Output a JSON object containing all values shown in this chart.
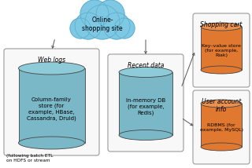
{
  "bg_color": "#ffffff",
  "cloud_color": "#7ec8e3",
  "cloud_edge": "#5aabcc",
  "box_bg": "#f8f8f8",
  "box_edge": "#999999",
  "db_teal": "#7ab8c8",
  "db_teal_top": "#8dcbd8",
  "db_orange": "#e07830",
  "db_orange_top": "#e89050",
  "arrow_color": "#555555",
  "db_labels": {
    "weblogs": "Column-family\nstore (for\nexample, HBase,\nCassandra, Druid)",
    "recent": "In-memory DB\n(for example,\nRedis)",
    "shopping": "Key–value store\n(for example,\nRiak)",
    "user": "RDBMS (for\nexample, MySQL)"
  },
  "footer": "(following batch ETL\non HDFS or stream"
}
